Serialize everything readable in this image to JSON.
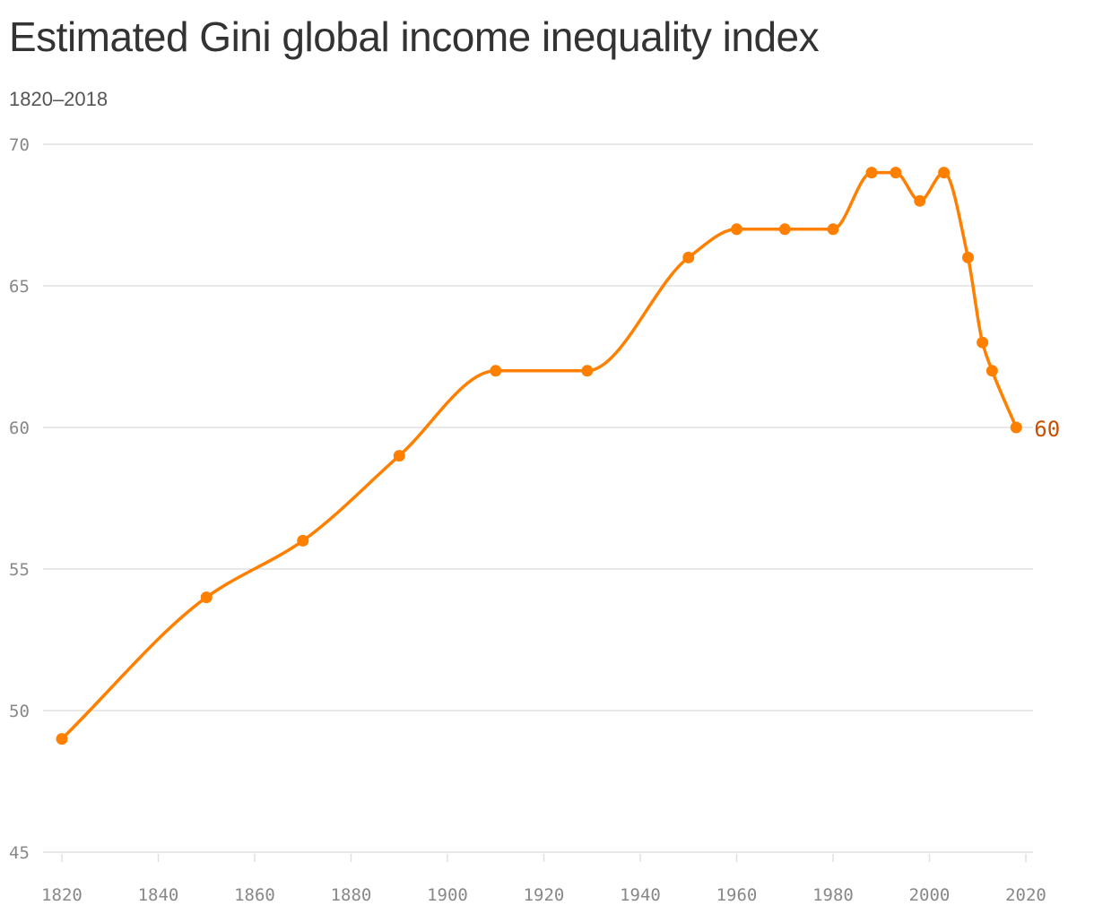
{
  "title": "Estimated Gini global income inequality index",
  "subtitle": "1820–2018",
  "colors": {
    "line": "#ff7f00",
    "grid": "#e0e0e0",
    "tick": "#888888",
    "end_label": "#c75000"
  },
  "chart_data": {
    "type": "line",
    "title": "Estimated Gini global income inequality index",
    "subtitle": "1820–2018",
    "xlabel": "",
    "ylabel": "",
    "xlim": [
      1820,
      2020
    ],
    "ylim": [
      45,
      70
    ],
    "x_ticks": [
      1820,
      1840,
      1860,
      1880,
      1900,
      1920,
      1940,
      1960,
      1980,
      2000,
      2020
    ],
    "y_ticks": [
      45,
      50,
      55,
      60,
      65,
      70
    ],
    "grid": "horizontal",
    "legend": "none",
    "series": [
      {
        "x": [
          1820,
          1850,
          1870,
          1890,
          1910,
          1929,
          1950,
          1960,
          1970,
          1980,
          1988,
          1993,
          1998,
          2003,
          2008,
          2011,
          2013,
          2018
        ],
        "values": [
          49,
          54,
          56,
          59,
          62,
          62,
          66,
          67,
          67,
          67,
          69,
          69,
          68,
          69,
          66,
          63,
          62,
          60
        ]
      }
    ],
    "end_label": "60"
  }
}
